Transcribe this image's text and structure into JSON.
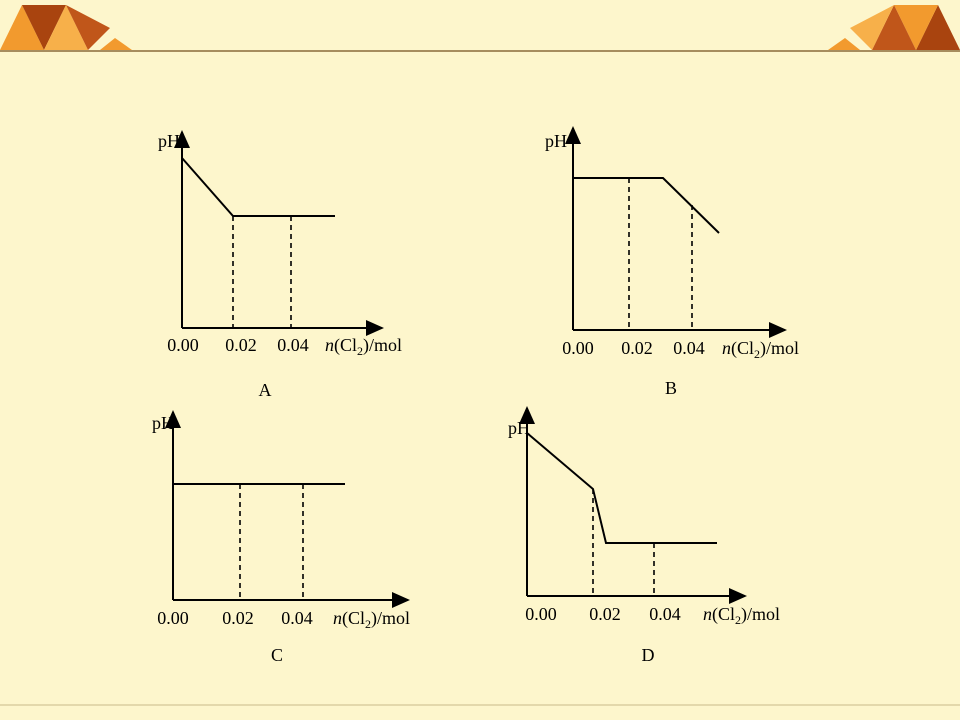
{
  "graphs": [
    {
      "label": "A",
      "y_axis": "pH",
      "x_ticks": [
        "0.00",
        "0.02",
        "0.04"
      ],
      "x_axis": {
        "italic": "n",
        "text": "(Cl",
        "subscript": "2",
        "tail": ")/mol"
      }
    },
    {
      "label": "B",
      "y_axis": "pH",
      "x_ticks": [
        "0.00",
        "0.02",
        "0.04"
      ],
      "x_axis": {
        "italic": "n",
        "text": "(Cl",
        "subscript": "2",
        "tail": ")/mol"
      }
    },
    {
      "label": "C",
      "y_axis": "pH",
      "x_ticks": [
        "0.00",
        "0.02",
        "0.04"
      ],
      "x_axis": {
        "italic": "n",
        "text": "(Cl",
        "subscript": "2",
        "tail": ")/mol"
      }
    },
    {
      "label": "D",
      "y_axis": "pH",
      "x_ticks": [
        "0.00",
        "0.02",
        "0.04"
      ],
      "x_axis": {
        "italic": "n",
        "text": "(Cl",
        "subscript": "2",
        "tail": ")/mol"
      }
    }
  ]
}
